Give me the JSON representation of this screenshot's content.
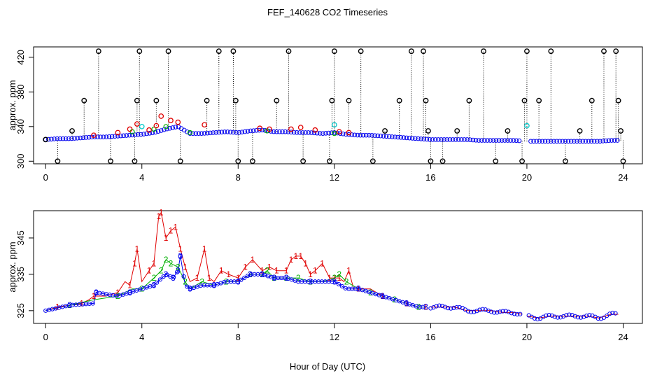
{
  "title": "FEF_140628  CO2 Timeseries",
  "xlabel": "Hour of Day (UTC)",
  "chart_data": [
    {
      "type": "scatter",
      "panel": "top",
      "ylabel": "approx. ppm",
      "xlim": [
        -0.5,
        24.8
      ],
      "ylim": [
        297,
        432
      ],
      "x_ticks": [
        0,
        4,
        8,
        12,
        16,
        20,
        24
      ],
      "y_ticks": [
        300,
        340,
        380,
        420
      ],
      "colors": {
        "black": "#000000",
        "red": "#e00000",
        "green": "#00b000",
        "blue": "#0000ee",
        "cyan": "#00c8c8"
      },
      "baseline_blue": [
        [
          0.0,
          325
        ],
        [
          0.5,
          326
        ],
        [
          1.0,
          326
        ],
        [
          1.5,
          327
        ],
        [
          2.0,
          328
        ],
        [
          2.5,
          328
        ],
        [
          3.0,
          329
        ],
        [
          3.5,
          330
        ],
        [
          4.0,
          331
        ],
        [
          4.5,
          333
        ],
        [
          5.0,
          337
        ],
        [
          5.5,
          340
        ],
        [
          6.0,
          332
        ],
        [
          6.5,
          332
        ],
        [
          7.0,
          333
        ],
        [
          7.5,
          334
        ],
        [
          8.0,
          333
        ],
        [
          8.5,
          335
        ],
        [
          9.0,
          336
        ],
        [
          9.5,
          334
        ],
        [
          10.0,
          334
        ],
        [
          10.5,
          333
        ],
        [
          11.0,
          333
        ],
        [
          11.5,
          332
        ],
        [
          12.0,
          333
        ],
        [
          12.5,
          331
        ],
        [
          13.0,
          330
        ],
        [
          13.5,
          330
        ],
        [
          14.0,
          329
        ],
        [
          14.5,
          328
        ],
        [
          15.0,
          327
        ],
        [
          15.5,
          326
        ],
        [
          16.0,
          325
        ],
        [
          16.5,
          325
        ],
        [
          17.0,
          325
        ],
        [
          17.5,
          325
        ],
        [
          18.0,
          324
        ],
        [
          18.5,
          324
        ],
        [
          19.0,
          324
        ],
        [
          19.5,
          324
        ],
        [
          20.0,
          323
        ],
        [
          20.5,
          323
        ],
        [
          21.0,
          323
        ],
        [
          21.5,
          323
        ],
        [
          22.0,
          323
        ],
        [
          22.5,
          323
        ],
        [
          23.0,
          323
        ],
        [
          23.5,
          324
        ]
      ],
      "red_points": [
        [
          2.0,
          330
        ],
        [
          3.0,
          333
        ],
        [
          3.5,
          337
        ],
        [
          3.8,
          343
        ],
        [
          4.3,
          336
        ],
        [
          4.6,
          341
        ],
        [
          4.8,
          352
        ],
        [
          5.2,
          347
        ],
        [
          5.5,
          345
        ],
        [
          6.6,
          342
        ],
        [
          8.9,
          338
        ],
        [
          9.3,
          337
        ],
        [
          10.2,
          337
        ],
        [
          10.6,
          339
        ],
        [
          11.2,
          336
        ],
        [
          12.2,
          334
        ],
        [
          12.6,
          333
        ]
      ],
      "green_points": [
        [
          3.6,
          334
        ],
        [
          4.5,
          337
        ],
        [
          5.0,
          340
        ],
        [
          6.0,
          333
        ],
        [
          9.2,
          335
        ],
        [
          12.0,
          332
        ]
      ],
      "cyan_points": [
        [
          4.0,
          340
        ],
        [
          12.0,
          342
        ],
        [
          20.0,
          341
        ]
      ],
      "black_points": [
        [
          0.0,
          325
        ],
        [
          0.5,
          300
        ],
        [
          1.1,
          335
        ],
        [
          1.6,
          370
        ],
        [
          2.2,
          427
        ],
        [
          2.7,
          300
        ],
        [
          3.7,
          300
        ],
        [
          3.8,
          370
        ],
        [
          3.9,
          427
        ],
        [
          4.6,
          370
        ],
        [
          5.1,
          427
        ],
        [
          5.6,
          300
        ],
        [
          6.7,
          370
        ],
        [
          7.2,
          427
        ],
        [
          7.8,
          427
        ],
        [
          7.9,
          370
        ],
        [
          8.0,
          300
        ],
        [
          8.6,
          300
        ],
        [
          9.6,
          370
        ],
        [
          10.1,
          427
        ],
        [
          10.7,
          300
        ],
        [
          11.8,
          300
        ],
        [
          11.9,
          370
        ],
        [
          12.0,
          427
        ],
        [
          12.6,
          370
        ],
        [
          13.1,
          427
        ],
        [
          13.6,
          300
        ],
        [
          14.1,
          335
        ],
        [
          14.7,
          370
        ],
        [
          15.2,
          427
        ],
        [
          15.7,
          427
        ],
        [
          15.8,
          370
        ],
        [
          15.9,
          335
        ],
        [
          16.0,
          300
        ],
        [
          16.5,
          300
        ],
        [
          17.1,
          335
        ],
        [
          17.6,
          370
        ],
        [
          18.2,
          427
        ],
        [
          18.7,
          300
        ],
        [
          19.2,
          335
        ],
        [
          19.8,
          300
        ],
        [
          19.9,
          370
        ],
        [
          20.0,
          427
        ],
        [
          20.5,
          370
        ],
        [
          21.0,
          427
        ],
        [
          21.6,
          300
        ],
        [
          22.2,
          335
        ],
        [
          22.7,
          370
        ],
        [
          23.2,
          427
        ],
        [
          23.7,
          427
        ],
        [
          23.8,
          370
        ],
        [
          23.9,
          335
        ],
        [
          24.0,
          300
        ]
      ]
    },
    {
      "type": "line",
      "panel": "bottom",
      "ylabel": "approx. ppm",
      "xlim": [
        -0.5,
        24.8
      ],
      "ylim": [
        321.5,
        352.5
      ],
      "x_ticks": [
        0,
        4,
        8,
        12,
        16,
        20,
        24
      ],
      "y_ticks": [
        325,
        335,
        345
      ],
      "series": [
        {
          "marker": "1",
          "color": "#e00000",
          "values": [
            [
              0.0,
              325
            ],
            [
              0.5,
              326
            ],
            [
              1.0,
              326.5
            ],
            [
              1.5,
              327
            ],
            [
              1.8,
              328
            ],
            [
              2.0,
              329
            ],
            [
              2.5,
              329
            ],
            [
              3.0,
              330
            ],
            [
              3.3,
              333
            ],
            [
              3.5,
              332
            ],
            [
              3.7,
              338
            ],
            [
              3.8,
              342
            ],
            [
              4.0,
              333
            ],
            [
              4.3,
              336
            ],
            [
              4.5,
              338
            ],
            [
              4.7,
              351
            ],
            [
              4.8,
              352
            ],
            [
              5.0,
              345
            ],
            [
              5.2,
              347
            ],
            [
              5.4,
              348
            ],
            [
              5.6,
              342
            ],
            [
              5.8,
              337
            ],
            [
              6.0,
              333
            ],
            [
              6.3,
              334
            ],
            [
              6.6,
              342
            ],
            [
              6.8,
              334
            ],
            [
              7.0,
              333
            ],
            [
              7.3,
              336
            ],
            [
              7.6,
              335
            ],
            [
              8.0,
              334
            ],
            [
              8.3,
              337
            ],
            [
              8.6,
              339
            ],
            [
              9.0,
              336
            ],
            [
              9.3,
              337
            ],
            [
              9.6,
              336
            ],
            [
              10.0,
              336
            ],
            [
              10.2,
              339
            ],
            [
              10.4,
              340
            ],
            [
              10.6,
              340
            ],
            [
              10.8,
              338
            ],
            [
              11.0,
              335
            ],
            [
              11.2,
              336
            ],
            [
              11.5,
              338
            ],
            [
              11.8,
              334
            ],
            [
              12.0,
              334
            ],
            [
              12.2,
              334
            ],
            [
              12.4,
              333
            ],
            [
              12.6,
              336
            ],
            [
              12.8,
              331
            ],
            [
              13.0,
              331
            ],
            [
              13.5,
              331
            ],
            [
              14.0,
              329
            ],
            [
              14.5,
              328
            ],
            [
              15.0,
              327
            ],
            [
              15.5,
              326
            ],
            [
              15.8,
              326
            ]
          ]
        },
        {
          "marker": "2",
          "color": "#00b000",
          "values": [
            [
              0.0,
              325
            ],
            [
              1.0,
              326.5
            ],
            [
              2.0,
              328
            ],
            [
              3.0,
              329
            ],
            [
              3.6,
              331
            ],
            [
              4.0,
              331
            ],
            [
              4.5,
              334
            ],
            [
              4.8,
              336
            ],
            [
              5.0,
              339
            ],
            [
              5.2,
              338
            ],
            [
              5.5,
              337
            ],
            [
              5.8,
              333
            ],
            [
              6.0,
              331
            ],
            [
              6.5,
              333
            ],
            [
              7.0,
              332
            ],
            [
              7.5,
              333
            ],
            [
              8.0,
              333
            ],
            [
              8.5,
              335
            ],
            [
              9.0,
              335
            ],
            [
              9.2,
              336
            ],
            [
              9.5,
              334
            ],
            [
              10.0,
              334
            ],
            [
              10.5,
              334
            ],
            [
              11.0,
              333
            ],
            [
              11.5,
              333
            ],
            [
              12.0,
              334
            ],
            [
              12.2,
              335
            ],
            [
              12.5,
              333
            ],
            [
              13.0,
              331
            ],
            [
              13.5,
              330
            ],
            [
              14.0,
              329
            ],
            [
              14.5,
              328
            ],
            [
              15.0,
              327
            ],
            [
              15.5,
              326
            ],
            [
              15.8,
              326
            ]
          ]
        },
        {
          "marker": "3",
          "color": "#0000ee",
          "values": [
            [
              0.0,
              325
            ],
            [
              1.0,
              326.5
            ],
            [
              2.0,
              327
            ],
            [
              2.1,
              330
            ],
            [
              3.0,
              329
            ],
            [
              3.5,
              330
            ],
            [
              4.0,
              331
            ],
            [
              4.5,
              332
            ],
            [
              5.0,
              335
            ],
            [
              5.3,
              334
            ],
            [
              5.5,
              336
            ],
            [
              5.6,
              340
            ],
            [
              5.8,
              332
            ],
            [
              6.0,
              331
            ],
            [
              6.5,
              332
            ],
            [
              7.0,
              332
            ],
            [
              7.5,
              333
            ],
            [
              8.0,
              333
            ],
            [
              8.5,
              335
            ],
            [
              9.0,
              335
            ],
            [
              9.5,
              334
            ],
            [
              10.0,
              334
            ],
            [
              10.5,
              333
            ],
            [
              11.0,
              333
            ],
            [
              11.5,
              333
            ],
            [
              12.0,
              333
            ],
            [
              12.5,
              331
            ],
            [
              13.0,
              331
            ],
            [
              13.5,
              330
            ],
            [
              14.0,
              329
            ],
            [
              14.5,
              328
            ],
            [
              15.0,
              327
            ],
            [
              15.5,
              326
            ],
            [
              15.8,
              326
            ]
          ]
        }
      ],
      "segments_after_16": [
        [
          16.0,
          326
        ],
        [
          16.5,
          326
        ],
        [
          17.0,
          326
        ],
        [
          17.5,
          325
        ],
        [
          18.0,
          325
        ],
        [
          18.5,
          325
        ],
        [
          19.0,
          324.5
        ],
        [
          19.5,
          324.5
        ],
        [
          19.8,
          324
        ],
        [
          20.0,
          323.5
        ],
        [
          20.5,
          323
        ],
        [
          21.0,
          323.5
        ],
        [
          21.5,
          323.5
        ],
        [
          22.0,
          323.5
        ],
        [
          22.5,
          323.5
        ],
        [
          23.0,
          323
        ],
        [
          23.5,
          324
        ],
        [
          23.8,
          324
        ]
      ]
    }
  ]
}
